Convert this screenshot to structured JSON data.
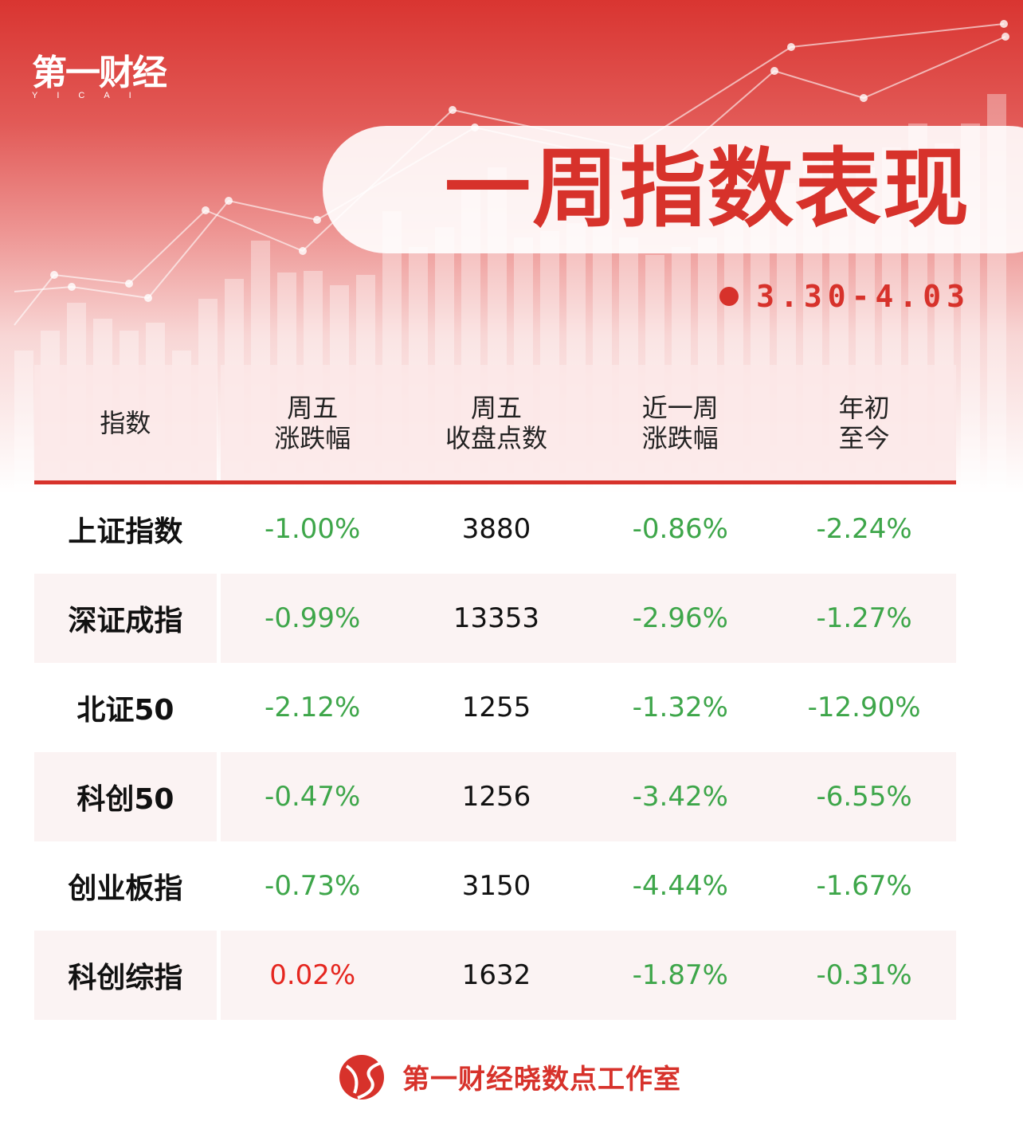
{
  "brand": {
    "logo_cn": "第一财经",
    "logo_en": "YICAI",
    "primary_color": "#d7322b",
    "down_color": "#3ea64a",
    "up_color": "#e5261f"
  },
  "title": "一周指数表现",
  "date_range": "3.30-4.03",
  "table": {
    "headers": [
      "指数",
      "周五\n涨跌幅",
      "周五\n收盘点数",
      "近一周\n涨跌幅",
      "年初\n至今"
    ],
    "rows": [
      {
        "name": "上证指数",
        "fri_change": "-1.00%",
        "fri_close": "3880",
        "week_change": "-0.86%",
        "ytd": "-2.24%"
      },
      {
        "name": "深证成指",
        "fri_change": "-0.99%",
        "fri_close": "13353",
        "week_change": "-2.96%",
        "ytd": "-1.27%"
      },
      {
        "name": "北证50",
        "fri_change": "-2.12%",
        "fri_close": "1255",
        "week_change": "-1.32%",
        "ytd": "-12.90%"
      },
      {
        "name": "科创50",
        "fri_change": "-0.47%",
        "fri_close": "1256",
        "week_change": "-3.42%",
        "ytd": "-6.55%"
      },
      {
        "name": "创业板指",
        "fri_change": "-0.73%",
        "fri_close": "3150",
        "week_change": "-4.44%",
        "ytd": "-1.67%"
      },
      {
        "name": "科创综指",
        "fri_change": "0.02%",
        "fri_close": "1632",
        "week_change": "-1.87%",
        "ytd": "-0.31%"
      }
    ]
  },
  "footer": {
    "text": "第一财经晓数点工作室"
  }
}
